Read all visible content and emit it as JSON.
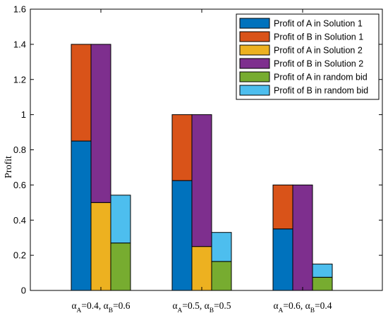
{
  "chart_data": {
    "type": "bar",
    "title": "",
    "xlabel": "",
    "ylabel": "Profit",
    "ylim": [
      0,
      1.6
    ],
    "yticks": [
      "0",
      "0.2",
      "0.4",
      "0.6",
      "0.8",
      "1",
      "1.2",
      "1.4",
      "1.6"
    ],
    "grid": false,
    "legend_position": "top-right",
    "categories": [
      {
        "a_label": "A",
        "a_val": "=0.4, ",
        "b_label": "B",
        "b_val": "=0.6"
      },
      {
        "a_label": "A",
        "a_val": "=0.5, ",
        "b_label": "B",
        "b_val": "=0.5"
      },
      {
        "a_label": "A",
        "a_val": "=0.6, ",
        "b_label": "B",
        "b_val": "=0.4"
      }
    ],
    "alpha_symbol": "α",
    "series": [
      {
        "name": "Profit of A in Solution 1",
        "color": "#0072BD",
        "values": [
          0.85,
          0.625,
          0.35
        ]
      },
      {
        "name": "Profit of B in Solution 1",
        "color": "#D95319",
        "values": [
          0.55,
          0.375,
          0.25
        ]
      },
      {
        "name": "Profit of A in Solution 2",
        "color": "#EDB120",
        "values": [
          0.5,
          0.25,
          0
        ]
      },
      {
        "name": "Profit of B in Solution 2",
        "color": "#7E2F8E",
        "values": [
          0.9,
          0.75,
          0.6
        ]
      },
      {
        "name": "Profit of A in random bid",
        "color": "#77AC30",
        "values": [
          0.27,
          0.165,
          0.075
        ]
      },
      {
        "name": "Profit of B in random bid",
        "color": "#4DBEEE",
        "values": [
          0.272,
          0.165,
          0.075
        ]
      }
    ],
    "stacks": [
      [
        0,
        1
      ],
      [
        2,
        3
      ],
      [
        4,
        5
      ]
    ]
  }
}
